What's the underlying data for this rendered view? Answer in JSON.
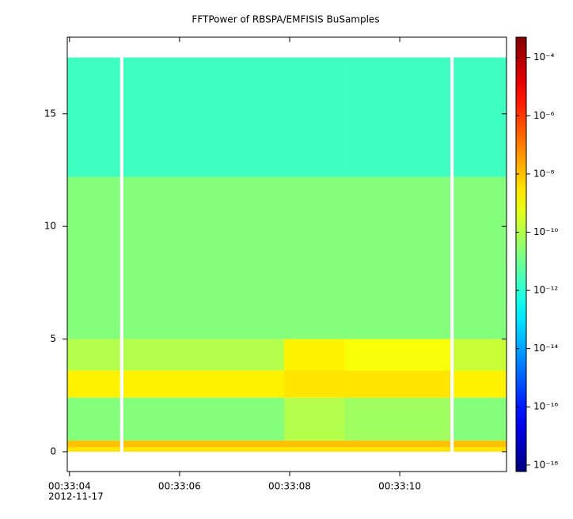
{
  "chart_data": {
    "type": "spectrogram",
    "title": "FFTPower of RBSPA/EMFISIS  BuSamples",
    "x_edges": [
      3.96,
      4.92,
      4.98,
      7.9,
      9.0,
      10.92,
      10.98,
      11.94
    ],
    "y_edges": [
      0,
      0.2,
      0.5,
      2.4,
      3.6,
      5,
      12.2,
      17.5
    ],
    "z": [
      [
        3e-09,
        null,
        3e-09,
        3e-09,
        3e-09,
        null,
        3e-09
      ],
      [
        1e-08,
        null,
        1e-08,
        1e-08,
        1e-08,
        null,
        1e-08
      ],
      [
        2e-11,
        null,
        2e-11,
        1e-10,
        5e-11,
        null,
        2e-11
      ],
      [
        2e-09,
        null,
        2e-09,
        3e-09,
        3e-09,
        null,
        2e-09
      ],
      [
        1e-10,
        null,
        1e-10,
        2e-09,
        1e-09,
        null,
        2e-10
      ],
      [
        2e-11,
        null,
        2e-11,
        2e-11,
        2e-11,
        null,
        2e-11
      ],
      [
        2e-12,
        null,
        2e-12,
        2e-12,
        2e-12,
        null,
        2e-12
      ]
    ],
    "xlim": [
      3.96,
      11.94
    ],
    "xticks": [
      {
        "value": 4,
        "label": "00:33:04"
      },
      {
        "value": 6,
        "label": "00:33:06"
      },
      {
        "value": 8,
        "label": "00:33:08"
      },
      {
        "value": 10,
        "label": "00:33:10"
      }
    ],
    "date_label": "2012-11-17",
    "ylim": [
      -0.88,
      18.4
    ],
    "yticks": [
      0,
      5,
      10,
      15
    ],
    "zlim": [
      6e-19,
      0.0005
    ],
    "zscale": "log",
    "zticks": [
      {
        "value": 0.0001,
        "label": "10⁻⁴"
      },
      {
        "value": 1e-06,
        "label": "10⁻⁶"
      },
      {
        "value": 1e-08,
        "label": "10⁻⁸"
      },
      {
        "value": 1e-10,
        "label": "10⁻¹⁰"
      },
      {
        "value": 1e-12,
        "label": "10⁻¹²"
      },
      {
        "value": 1e-14,
        "label": "10⁻¹⁴"
      },
      {
        "value": 1e-16,
        "label": "10⁻¹⁶"
      },
      {
        "value": 1e-18,
        "label": "10⁻¹⁸"
      }
    ]
  }
}
